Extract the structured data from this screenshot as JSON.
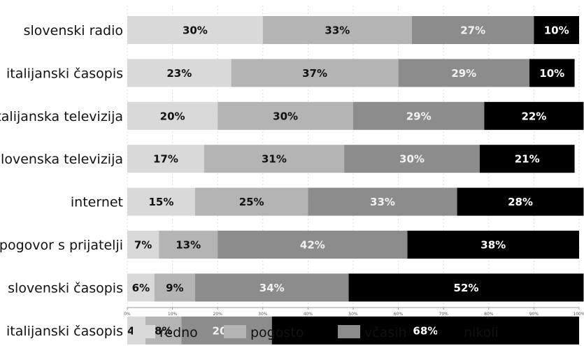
{
  "chart_data": {
    "type": "bar",
    "orientation": "horizontal",
    "stacked": true,
    "categories": [
      "slovenski radio",
      "italijanski časopis",
      "italijanska televizija",
      "slovenska televizija",
      "internet",
      "pogovor s prijatelji",
      "slovenski časopis",
      "italijanski časopis"
    ],
    "series": [
      {
        "name": "redno",
        "color": "#d9d9d9",
        "label_color": "#111111",
        "values": [
          30,
          23,
          20,
          17,
          15,
          7,
          6,
          4
        ],
        "labels": [
          "30%",
          "23%",
          "20%",
          "17%",
          "15%",
          "7%",
          "6%",
          "4%"
        ]
      },
      {
        "name": "pogosto",
        "color": "#b4b4b4",
        "label_color": "#111111",
        "values": [
          33,
          37,
          30,
          31,
          25,
          13,
          9,
          8
        ],
        "labels": [
          "33%",
          "37%",
          "30%",
          "31%",
          "25%",
          "13%",
          "9%",
          "8%"
        ]
      },
      {
        "name": "včasih",
        "color": "#8c8c8c",
        "label_color": "#f2f2f2",
        "values": [
          27,
          29,
          29,
          30,
          33,
          42,
          34,
          20
        ],
        "labels": [
          "27%",
          "29%",
          "29%",
          "30%",
          "33%",
          "42%",
          "34%",
          "20 %"
        ]
      },
      {
        "name": "nikoli",
        "color": "#000000",
        "label_color": "#ffffff",
        "values": [
          10,
          10,
          22,
          21,
          28,
          38,
          52,
          68
        ],
        "labels": [
          "10%",
          "10%",
          "22%",
          "21%",
          "28%",
          "38%",
          "52%",
          "68%"
        ]
      }
    ],
    "x_ticks": [
      "0%",
      "10%",
      "20%",
      "30%",
      "40%",
      "50%",
      "60%",
      "70%",
      "80%",
      "90%",
      "100%"
    ],
    "xlim": [
      0,
      100
    ],
    "grid": true,
    "legend_position": "bottom"
  }
}
